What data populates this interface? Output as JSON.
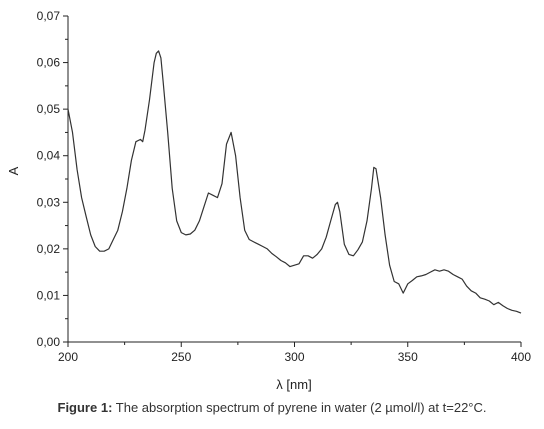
{
  "caption": {
    "label": "Figure 1:",
    "text": " The absorption spectrum of pyrene in water (2 µmol/l) at t=22°C."
  },
  "chart_data": {
    "type": "line",
    "title": "",
    "xlabel": "λ [nm]",
    "ylabel": "A",
    "xlim": [
      200,
      400
    ],
    "ylim": [
      0,
      0.07
    ],
    "xticks": [
      200,
      250,
      300,
      350,
      400
    ],
    "xtick_labels": [
      "200",
      "250",
      "300",
      "350",
      "400"
    ],
    "yticks": [
      0,
      0.01,
      0.02,
      0.03,
      0.04,
      0.05,
      0.06,
      0.07
    ],
    "ytick_labels": [
      "0,00",
      "0,01",
      "0,02",
      "0,03",
      "0,04",
      "0,05",
      "0,06",
      "0,07"
    ],
    "grid": false,
    "line_color": "#333333",
    "series": [
      {
        "x": [
          200,
          202,
          204,
          206,
          208,
          210,
          212,
          214,
          216,
          218,
          220,
          222,
          224,
          226,
          228,
          230,
          232,
          233,
          234,
          236,
          238,
          239,
          240,
          241,
          242,
          244,
          246,
          248,
          250,
          252,
          254,
          256,
          258,
          260,
          262,
          264,
          266,
          268,
          270,
          272,
          274,
          276,
          278,
          280,
          282,
          284,
          286,
          288,
          290,
          292,
          294,
          296,
          298,
          300,
          302,
          304,
          306,
          308,
          310,
          312,
          314,
          316,
          318,
          319,
          320,
          322,
          324,
          326,
          328,
          330,
          332,
          334,
          335,
          336,
          338,
          340,
          342,
          344,
          346,
          348,
          350,
          352,
          354,
          356,
          358,
          360,
          362,
          364,
          366,
          368,
          370,
          372,
          374,
          376,
          378,
          380,
          382,
          384,
          386,
          388,
          390,
          392,
          394,
          396,
          398,
          400
        ],
        "y": [
          0.05,
          0.045,
          0.037,
          0.031,
          0.027,
          0.023,
          0.0205,
          0.0195,
          0.0195,
          0.02,
          0.022,
          0.024,
          0.028,
          0.033,
          0.039,
          0.043,
          0.0435,
          0.043,
          0.0455,
          0.052,
          0.06,
          0.062,
          0.0625,
          0.061,
          0.056,
          0.045,
          0.033,
          0.026,
          0.0235,
          0.023,
          0.0232,
          0.024,
          0.026,
          0.029,
          0.032,
          0.0315,
          0.031,
          0.034,
          0.0425,
          0.045,
          0.04,
          0.031,
          0.024,
          0.022,
          0.0215,
          0.021,
          0.0205,
          0.02,
          0.019,
          0.0183,
          0.0175,
          0.017,
          0.0162,
          0.0165,
          0.0168,
          0.0185,
          0.0185,
          0.018,
          0.0188,
          0.02,
          0.0225,
          0.026,
          0.0295,
          0.03,
          0.028,
          0.021,
          0.0188,
          0.0185,
          0.0198,
          0.0215,
          0.026,
          0.033,
          0.0375,
          0.0372,
          0.031,
          0.023,
          0.0165,
          0.013,
          0.0125,
          0.0105,
          0.0125,
          0.0132,
          0.014,
          0.0142,
          0.0145,
          0.015,
          0.0155,
          0.0152,
          0.0155,
          0.0152,
          0.0145,
          0.014,
          0.0135,
          0.012,
          0.011,
          0.0105,
          0.0095,
          0.0092,
          0.0088,
          0.008,
          0.0085,
          0.0078,
          0.0072,
          0.0068,
          0.0066,
          0.0062
        ]
      }
    ]
  }
}
